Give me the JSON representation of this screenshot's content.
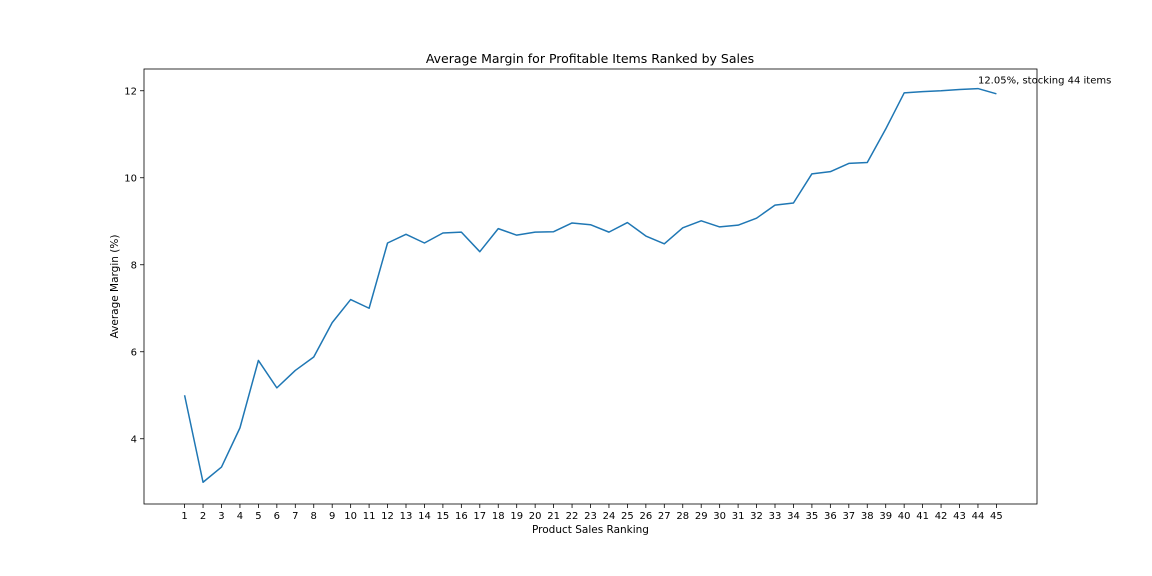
{
  "chart_data": {
    "type": "line",
    "title": "Average Margin for Profitable Items Ranked by Sales",
    "xlabel": "Product Sales Ranking",
    "ylabel": "Average Margin (%)",
    "x": [
      1,
      2,
      3,
      4,
      5,
      6,
      7,
      8,
      9,
      10,
      11,
      12,
      13,
      14,
      15,
      16,
      17,
      18,
      19,
      20,
      21,
      22,
      23,
      24,
      25,
      26,
      27,
      28,
      29,
      30,
      31,
      32,
      33,
      34,
      35,
      36,
      37,
      38,
      39,
      40,
      41,
      42,
      43,
      44,
      45
    ],
    "series": [
      {
        "name": "",
        "color": "#1f77b4",
        "values": [
          5.0,
          3.0,
          3.35,
          4.25,
          5.8,
          5.17,
          5.57,
          5.88,
          6.67,
          7.2,
          7.0,
          8.5,
          8.7,
          8.5,
          8.73,
          8.75,
          8.3,
          8.83,
          8.68,
          8.75,
          8.76,
          8.96,
          8.92,
          8.75,
          8.97,
          8.66,
          8.48,
          8.85,
          9.01,
          8.87,
          8.91,
          9.07,
          9.37,
          9.42,
          10.09,
          10.14,
          10.33,
          10.35,
          11.12,
          11.95,
          11.98,
          12.0,
          12.03,
          12.05,
          11.93
        ]
      }
    ],
    "xlim": [
      -1.2,
      47.2
    ],
    "ylim": [
      2.5,
      12.5
    ],
    "yticks": [
      4,
      6,
      8,
      10,
      12
    ],
    "grid": false,
    "annotation": {
      "text": "12.05%, stocking 44 items",
      "x": 44,
      "y": 12.05
    }
  }
}
